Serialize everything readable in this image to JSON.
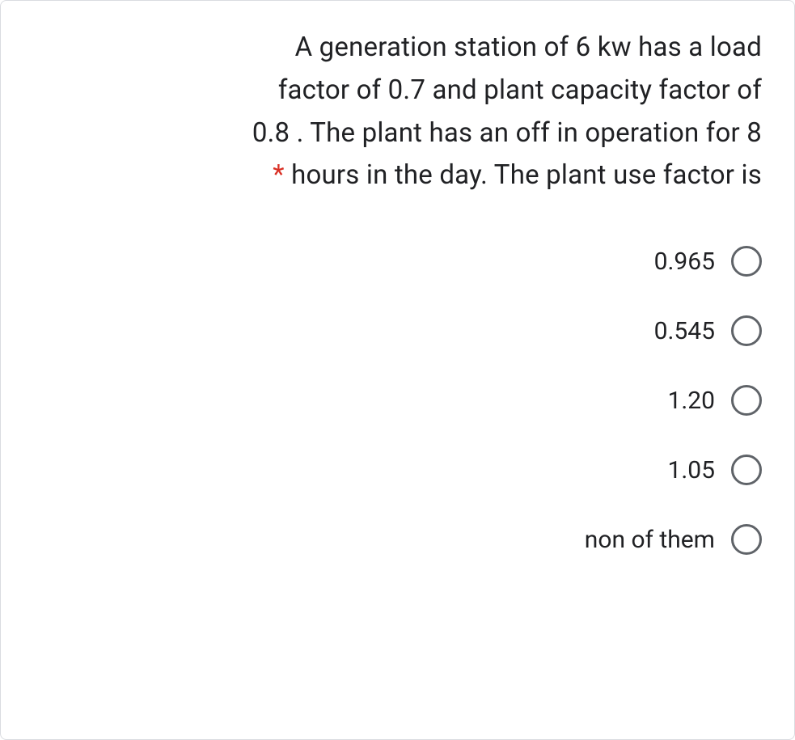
{
  "question": {
    "line1": "A generation station of 6 kw has a load",
    "line2": "factor of 0.7 and plant capacity factor of",
    "line3": "0.8 . The plant has an off in operation for 8",
    "line4_before": "hours in the day. The plant use factor is",
    "required_marker": "*"
  },
  "options": [
    {
      "label": "0.965"
    },
    {
      "label": "0.545"
    },
    {
      "label": "1.20"
    },
    {
      "label": "1.05"
    },
    {
      "label": "non of them"
    }
  ],
  "styling": {
    "card_border_color": "#dadce0",
    "text_color": "#202124",
    "asterisk_color": "#d93025",
    "radio_border_color": "#5f6368",
    "background_color": "#ffffff",
    "question_fontsize": 33,
    "option_fontsize": 30,
    "radio_size": 38
  }
}
